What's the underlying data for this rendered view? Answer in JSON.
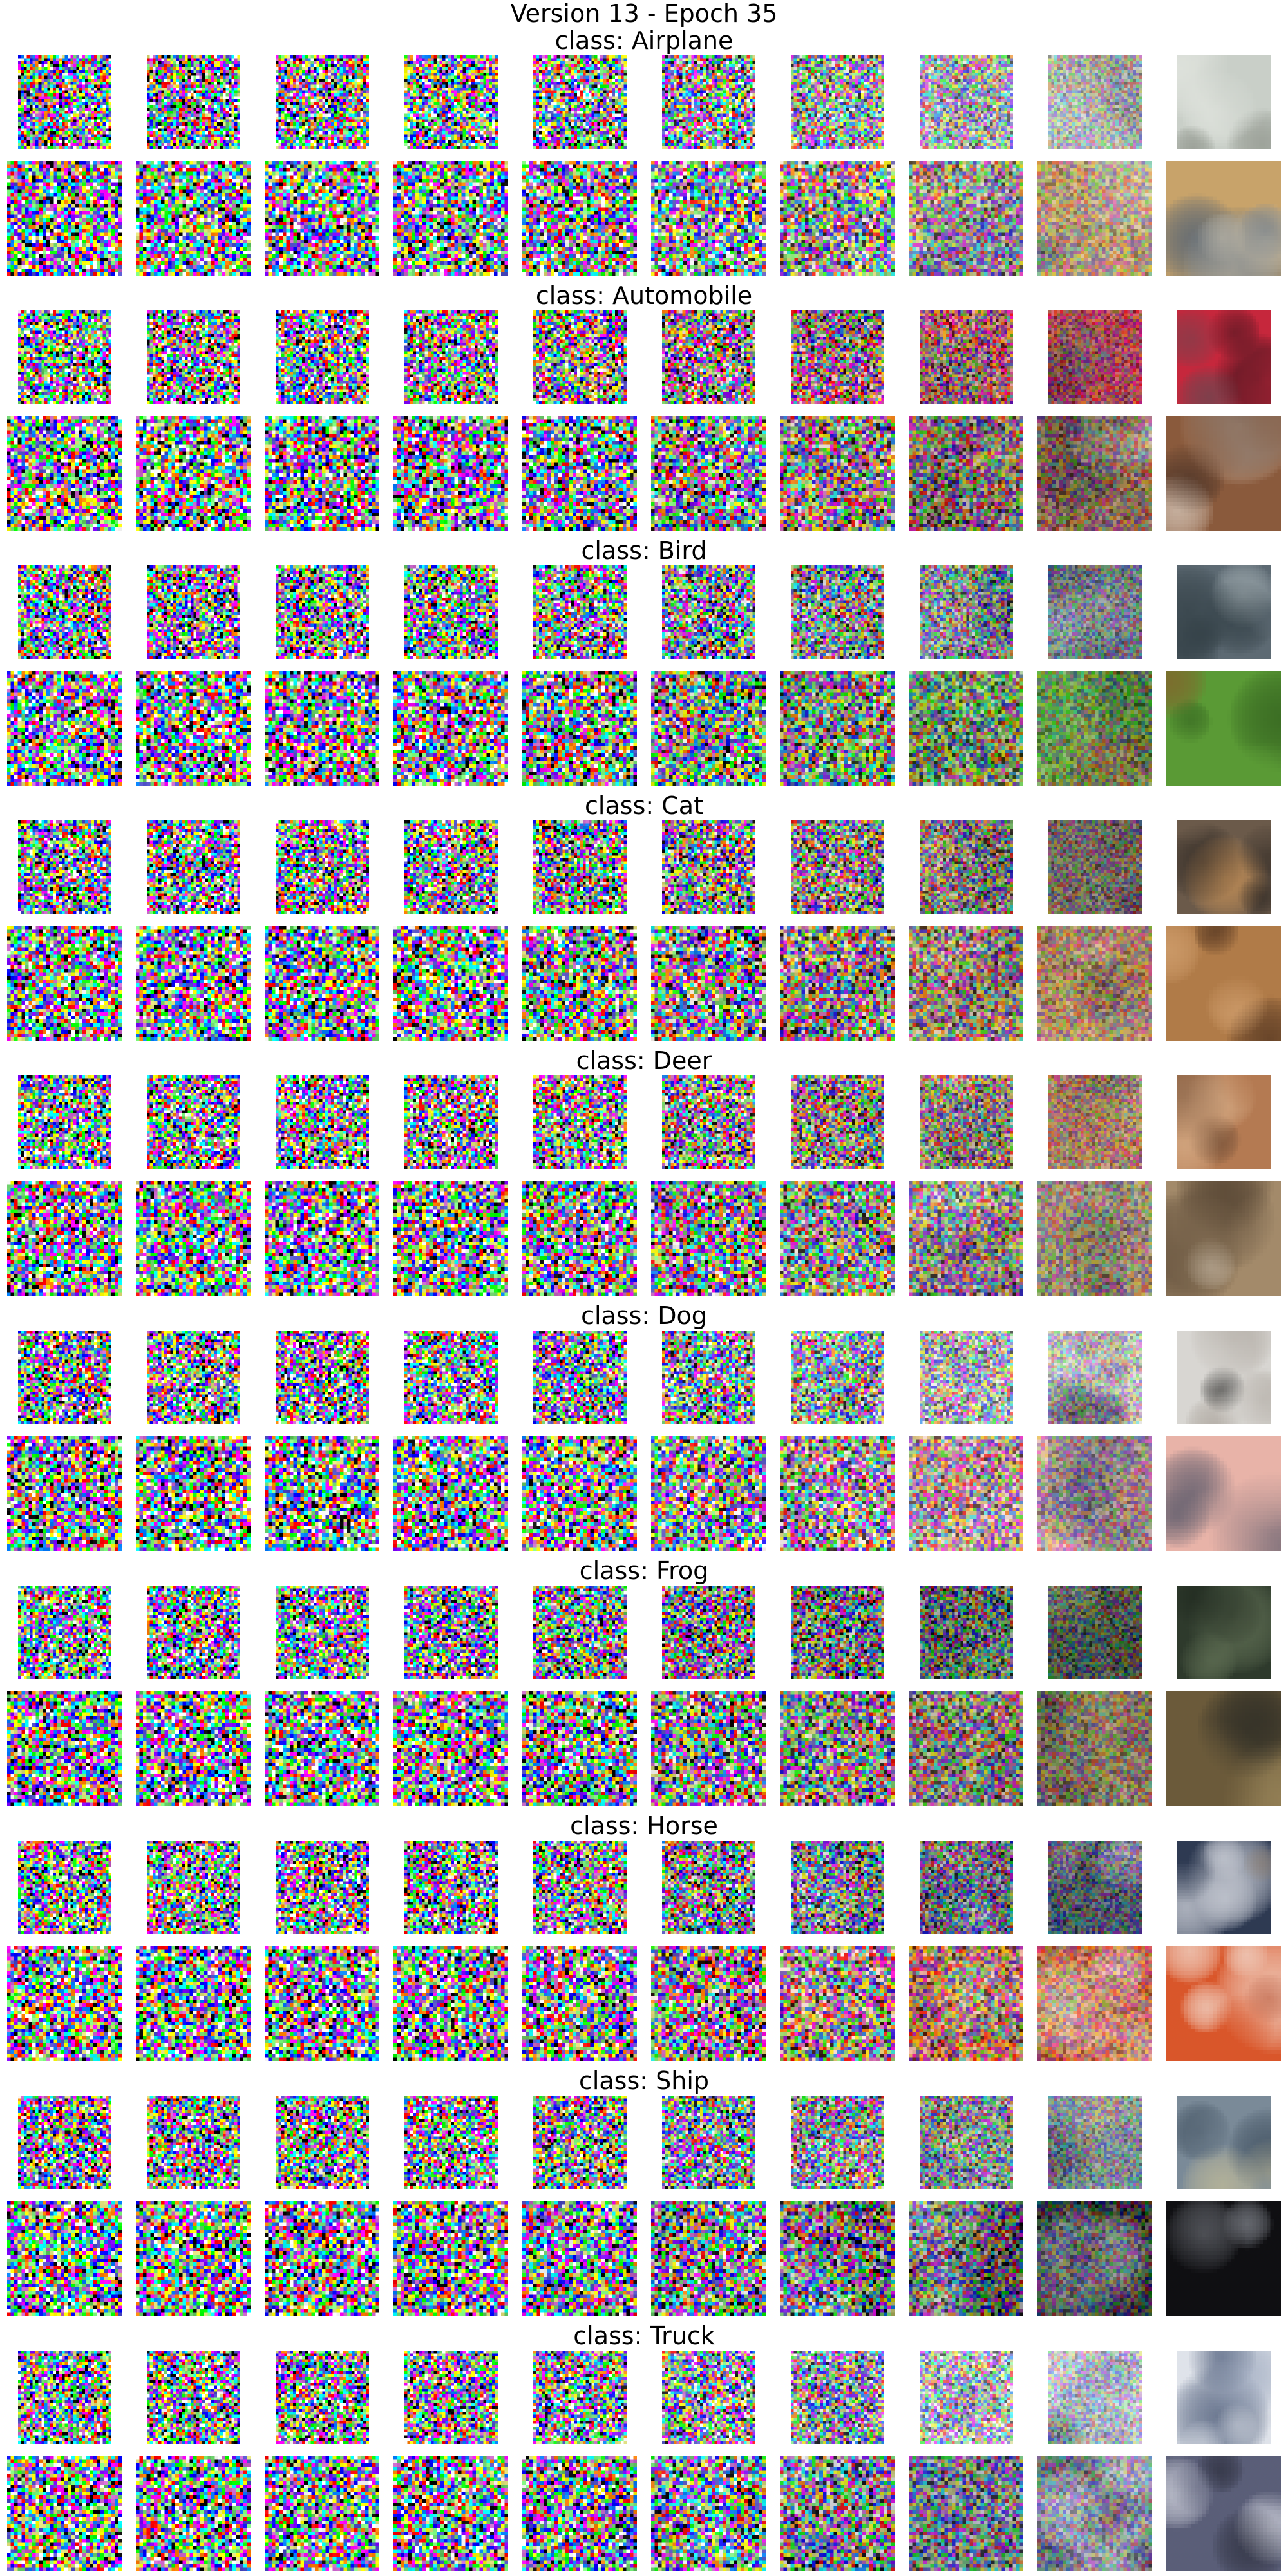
{
  "figure": {
    "title_line1": "Version 13 - Epoch 35",
    "steps_per_row": 10,
    "rows_per_class": 2,
    "row_descriptions": [
      "small images",
      "large images"
    ],
    "classes": [
      {
        "id": "airplane",
        "title": "class: Airplane",
        "dominant_colors_final": [
          "#c9cfc8",
          "#8a8f86",
          "#e6e9e3"
        ],
        "dominant_colors_final_row2": [
          "#c8a36a",
          "#3b5576",
          "#e0d7c2"
        ]
      },
      {
        "id": "automobile",
        "title": "class: Automobile",
        "dominant_colors_final": [
          "#c6273c",
          "#2a1218",
          "#5f4a52"
        ],
        "dominant_colors_final_row2": [
          "#8a5a3c",
          "#dfd4c8",
          "#3c2a22"
        ]
      },
      {
        "id": "bird",
        "title": "class: Bird",
        "dominant_colors_final": [
          "#5d6a73",
          "#2d3a40",
          "#a9b4b8"
        ],
        "dominant_colors_final_row2": [
          "#5a9a35",
          "#8a5a2a",
          "#2e5a1c"
        ]
      },
      {
        "id": "cat",
        "title": "class: Cat",
        "dominant_colors_final": [
          "#6b5a4a",
          "#d79b5a",
          "#2a2420"
        ],
        "dominant_colors_final_row2": [
          "#b07b48",
          "#4a2e1c",
          "#d6a574"
        ]
      },
      {
        "id": "deer",
        "title": "class: Deer",
        "dominant_colors_final": [
          "#b47a52",
          "#6a4a34",
          "#d9b08a"
        ],
        "dominant_colors_final_row2": [
          "#a38a6a",
          "#e5dccd",
          "#4a3a2a"
        ]
      },
      {
        "id": "dog",
        "title": "class: Dog",
        "dominant_colors_final": [
          "#d8d6d2",
          "#3b3a38",
          "#a9a29a"
        ],
        "dominant_colors_final_row2": [
          "#e8b3a8",
          "#4a4f63",
          "#c98478"
        ]
      },
      {
        "id": "frog",
        "title": "class: Frog",
        "dominant_colors_final": [
          "#2e3a2c",
          "#6a7a5c",
          "#1a221a"
        ],
        "dominant_colors_final_row2": [
          "#6b5a3a",
          "#2a2a24",
          "#a38e60"
        ]
      },
      {
        "id": "horse",
        "title": "class: Horse",
        "dominant_colors_final": [
          "#2e3a52",
          "#e2e4ea",
          "#8a7a6a"
        ],
        "dominant_colors_final_row2": [
          "#d9562a",
          "#f4e6dc",
          "#a83a1a"
        ]
      },
      {
        "id": "ship",
        "title": "class: Ship",
        "dominant_colors_final": [
          "#7a8a98",
          "#3a4a5a",
          "#c8c09a"
        ],
        "dominant_colors_final_row2": [
          "#0f0f12",
          "#8a8e96",
          "#d8dde2"
        ]
      },
      {
        "id": "truck",
        "title": "class: Truck",
        "dominant_colors_final": [
          "#dfe3ea",
          "#3a4a6a",
          "#9aa6bc"
        ],
        "dominant_colors_final_row2": [
          "#5a5e78",
          "#e0e2ea",
          "#2a2c3a"
        ]
      }
    ]
  }
}
